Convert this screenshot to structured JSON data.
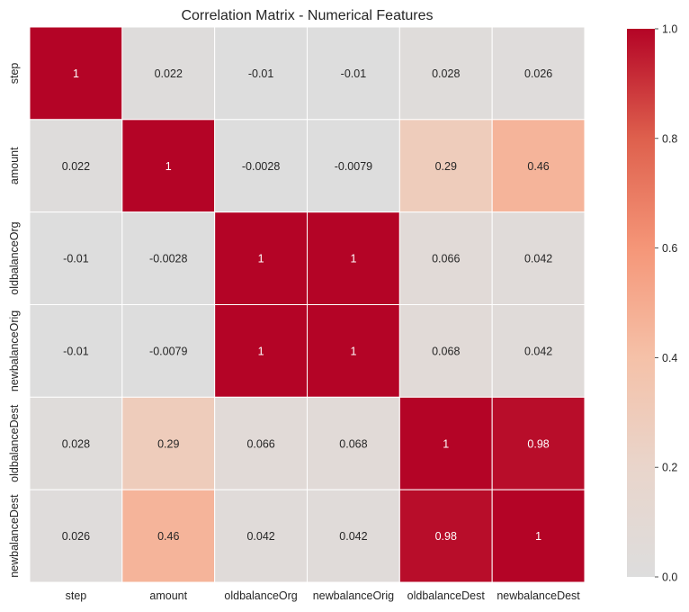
{
  "chart_data": {
    "type": "heatmap",
    "title": "Correlation Matrix - Numerical Features",
    "x_categories": [
      "step",
      "amount",
      "oldbalanceOrg",
      "newbalanceOrig",
      "oldbalanceDest",
      "newbalanceDest"
    ],
    "y_categories": [
      "step",
      "amount",
      "oldbalanceOrg",
      "newbalanceOrig",
      "oldbalanceDest",
      "newbalanceDest"
    ],
    "values": [
      [
        1,
        0.022,
        -0.01,
        -0.01,
        0.028,
        0.026
      ],
      [
        0.022,
        1,
        -0.0028,
        -0.0079,
        0.29,
        0.46
      ],
      [
        -0.01,
        -0.0028,
        1,
        1,
        0.066,
        0.042
      ],
      [
        -0.01,
        -0.0079,
        1,
        1,
        0.068,
        0.042
      ],
      [
        0.028,
        0.29,
        0.066,
        0.068,
        1,
        0.98
      ],
      [
        0.026,
        0.46,
        0.042,
        0.042,
        0.98,
        1
      ]
    ],
    "value_labels": [
      [
        "1",
        "0.022",
        "-0.01",
        "-0.01",
        "0.028",
        "0.026"
      ],
      [
        "0.022",
        "1",
        "-0.0028",
        "-0.0079",
        "0.29",
        "0.46"
      ],
      [
        "-0.01",
        "-0.0028",
        "1",
        "1",
        "0.066",
        "0.042"
      ],
      [
        "-0.01",
        "-0.0079",
        "1",
        "1",
        "0.068",
        "0.042"
      ],
      [
        "0.028",
        "0.29",
        "0.066",
        "0.068",
        "1",
        "0.98"
      ],
      [
        "0.026",
        "0.46",
        "0.042",
        "0.042",
        "0.98",
        "1"
      ]
    ],
    "colorbar": {
      "range": [
        0,
        1
      ],
      "ticks": [
        0.0,
        0.2,
        0.4,
        0.6,
        0.8,
        1.0
      ],
      "tick_labels": [
        "0.0",
        "0.2",
        "0.4",
        "0.6",
        "0.8",
        "1.0"
      ],
      "colormap": "coolwarm",
      "center": 0,
      "colors": {
        "zero": "#dddddd",
        "mid": "#f5a383",
        "high": "#b40426"
      }
    },
    "cell_separator_color": "#ffffff",
    "annot_dark_color": "#262626",
    "annot_light_color": "#ffffff"
  }
}
